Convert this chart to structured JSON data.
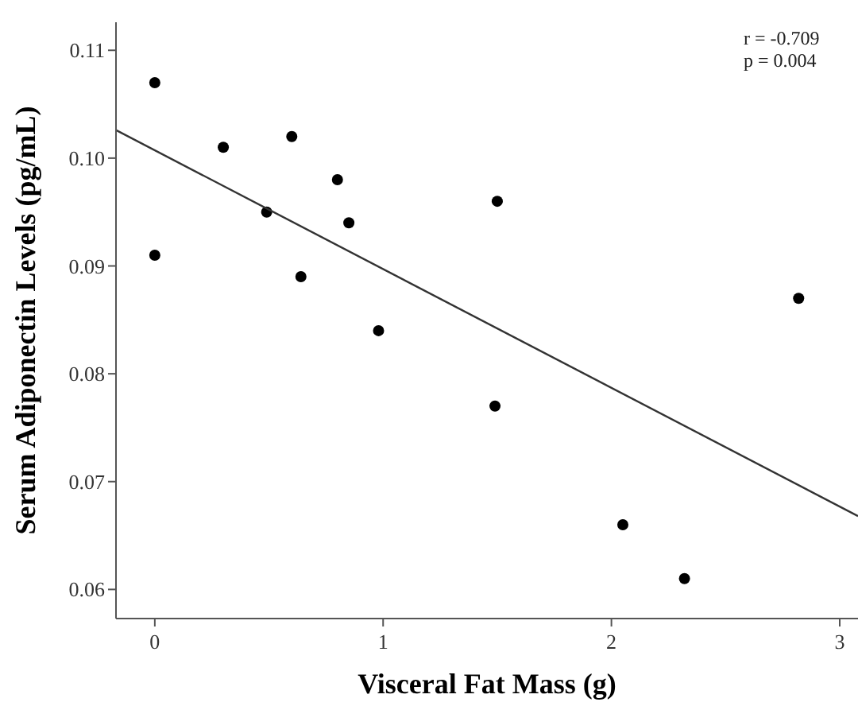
{
  "chart_data": {
    "type": "scatter",
    "xlabel": "Visceral Fat Mass (g)",
    "ylabel": "Serum Adiponectin Levels (pg/mL)",
    "annotations": [
      "r = -0.709\np = 0.004"
    ],
    "xlim": [
      -0.17,
      3.08
    ],
    "xticks": [
      0,
      1,
      2,
      3
    ],
    "ylim": [
      0.0573,
      0.1126
    ],
    "yticks": [
      0.06,
      0.07,
      0.08,
      0.09,
      {
        "value": 0.1,
        "label": "0.10"
      },
      0.11
    ],
    "grid": false,
    "marker": "circle",
    "series": [
      {
        "color": "#000000",
        "x": [
          0,
          0,
          0.3,
          0.49,
          0.6,
          0.8,
          0.85,
          0.64,
          0.98,
          1.5,
          1.49,
          2.05,
          2.32,
          2.82
        ],
        "values": [
          0.107,
          0.091,
          0.101,
          0.095,
          0.102,
          0.098,
          0.094,
          0.089,
          0.084,
          0.096,
          0.077,
          0.066,
          0.061,
          0.087
        ]
      },
      {
        "type": "line",
        "color": "#333333",
        "line_style": "solid",
        "marker": "none",
        "x": [
          -0.17,
          3.08
        ],
        "values": [
          0.1026,
          0.0668
        ]
      }
    ]
  }
}
